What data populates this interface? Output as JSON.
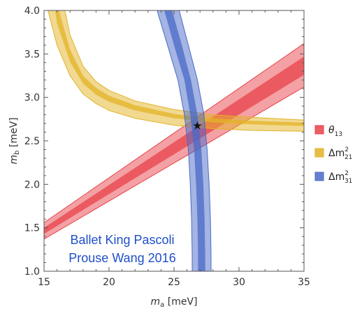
{
  "chart_data": {
    "type": "area",
    "xlabel": "m",
    "xlabel_sub": "a",
    "xlabel_unit": " [meV]",
    "ylabel": "m",
    "ylabel_sub": "b",
    "ylabel_unit": " [meV]",
    "xlim": [
      15,
      35
    ],
    "ylim": [
      1.0,
      4.0
    ],
    "x_ticks": [
      "15",
      "20",
      "25",
      "30",
      "35"
    ],
    "y_ticks": [
      "1.0",
      "1.5",
      "2.0",
      "2.5",
      "3.0",
      "3.5",
      "4.0"
    ],
    "x_tick_values": [
      15,
      20,
      25,
      30,
      35
    ],
    "y_tick_values": [
      1.0,
      1.5,
      2.0,
      2.5,
      3.0,
      3.5,
      4.0
    ],
    "grid": false,
    "legend_position": "right",
    "series": [
      {
        "name_main": "θ",
        "name_sub": "13",
        "name_sup": "",
        "color": "#e8434a",
        "outer_lower": [
          [
            15,
            1.37
          ],
          [
            35,
            3.12
          ]
        ],
        "outer_upper": [
          [
            15,
            1.56
          ],
          [
            35,
            3.62
          ]
        ],
        "inner_lower": [
          [
            15,
            1.43
          ],
          [
            35,
            3.26
          ]
        ],
        "inner_upper": [
          [
            15,
            1.5
          ],
          [
            35,
            3.47
          ]
        ]
      },
      {
        "name_main": "Δm",
        "name_sub": "21",
        "name_sup": "2",
        "color": "#e3b325",
        "outer_lower": [
          [
            15.3,
            4.0
          ],
          [
            16,
            3.6
          ],
          [
            17,
            3.25
          ],
          [
            18,
            3.04
          ],
          [
            19,
            2.93
          ],
          [
            20,
            2.85
          ],
          [
            22,
            2.76
          ],
          [
            25,
            2.68
          ],
          [
            28,
            2.64
          ],
          [
            31,
            2.62
          ],
          [
            35,
            2.61
          ]
        ],
        "outer_upper": [
          [
            16.6,
            4.0
          ],
          [
            17,
            3.72
          ],
          [
            18,
            3.36
          ],
          [
            19,
            3.18
          ],
          [
            20,
            3.08
          ],
          [
            22,
            2.96
          ],
          [
            25,
            2.86
          ],
          [
            28,
            2.8
          ],
          [
            31,
            2.77
          ],
          [
            35,
            2.74
          ]
        ],
        "inner_lower": [
          [
            15.85,
            4.0
          ],
          [
            16,
            3.85
          ],
          [
            17,
            3.41
          ],
          [
            18,
            3.16
          ],
          [
            19,
            3.03
          ],
          [
            20,
            2.95
          ],
          [
            22,
            2.85
          ],
          [
            25,
            2.76
          ],
          [
            28,
            2.71
          ],
          [
            31,
            2.69
          ],
          [
            35,
            2.67
          ]
        ],
        "inner_upper": [
          [
            16.15,
            4.0
          ],
          [
            17,
            3.55
          ],
          [
            18,
            3.25
          ],
          [
            19,
            3.11
          ],
          [
            20,
            3.02
          ],
          [
            22,
            2.91
          ],
          [
            25,
            2.81
          ],
          [
            28,
            2.76
          ],
          [
            31,
            2.73
          ],
          [
            35,
            2.71
          ]
        ]
      },
      {
        "name_main": "Δm",
        "name_sub": "31",
        "name_sup": "2",
        "color": "#4a6ac7",
        "outer_lower": [
          [
            23.7,
            4.0
          ],
          [
            24.5,
            3.6
          ],
          [
            25.3,
            3.2
          ],
          [
            25.8,
            2.8
          ],
          [
            26.1,
            2.4
          ],
          [
            26.25,
            2.0
          ],
          [
            26.35,
            1.6
          ],
          [
            26.4,
            1.2
          ],
          [
            26.4,
            1.0
          ]
        ],
        "outer_upper": [
          [
            25.4,
            4.0
          ],
          [
            26.1,
            3.6
          ],
          [
            26.8,
            3.2
          ],
          [
            27.3,
            2.8
          ],
          [
            27.55,
            2.4
          ],
          [
            27.7,
            2.0
          ],
          [
            27.8,
            1.6
          ],
          [
            27.85,
            1.2
          ],
          [
            27.85,
            1.0
          ]
        ],
        "inner_lower": [
          [
            24.25,
            4.0
          ],
          [
            25.0,
            3.6
          ],
          [
            25.8,
            3.2
          ],
          [
            26.25,
            2.8
          ],
          [
            26.55,
            2.4
          ],
          [
            26.7,
            2.0
          ],
          [
            26.8,
            1.6
          ],
          [
            26.85,
            1.2
          ],
          [
            26.85,
            1.0
          ]
        ],
        "inner_upper": [
          [
            24.85,
            4.0
          ],
          [
            25.6,
            3.6
          ],
          [
            26.3,
            3.2
          ],
          [
            26.8,
            2.8
          ],
          [
            27.1,
            2.4
          ],
          [
            27.25,
            2.0
          ],
          [
            27.35,
            1.6
          ],
          [
            27.4,
            1.2
          ],
          [
            27.4,
            1.0
          ]
        ]
      }
    ],
    "best_fit": {
      "x": 26.8,
      "y": 2.68,
      "symbol": "★"
    },
    "annotation": [
      "Ballet King Pascoli",
      "Prouse Wang 2016"
    ]
  }
}
